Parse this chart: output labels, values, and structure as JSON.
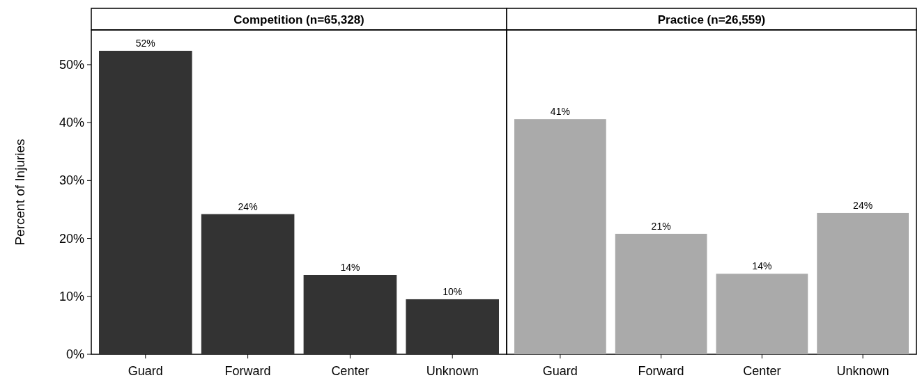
{
  "chart_data": [
    {
      "type": "bar",
      "title": "Competition (n=65,328)",
      "ylabel": "Percent of Injuries",
      "categories": [
        "Guard",
        "Forward",
        "Center",
        "Unknown"
      ],
      "values": [
        52.4,
        24.2,
        13.7,
        9.5
      ],
      "value_labels": [
        "52%",
        "24%",
        "14%",
        "10%"
      ],
      "color": "#333333",
      "ylim": [
        0,
        56
      ],
      "yticks": [
        {
          "value": 0,
          "label": "0%"
        },
        {
          "value": 10,
          "label": "10%"
        },
        {
          "value": 20,
          "label": "20%"
        },
        {
          "value": 30,
          "label": "30%"
        },
        {
          "value": 40,
          "label": "40%"
        },
        {
          "value": 50,
          "label": "50%"
        }
      ]
    },
    {
      "type": "bar",
      "title": "Practice (n=26,559)",
      "categories": [
        "Guard",
        "Forward",
        "Center",
        "Unknown"
      ],
      "values": [
        40.6,
        20.8,
        13.9,
        24.4
      ],
      "value_labels": [
        "41%",
        "21%",
        "14%",
        "24%"
      ],
      "color": "#aaaaaa",
      "ylim": [
        0,
        56
      ],
      "tick_labels": "x"
    }
  ]
}
